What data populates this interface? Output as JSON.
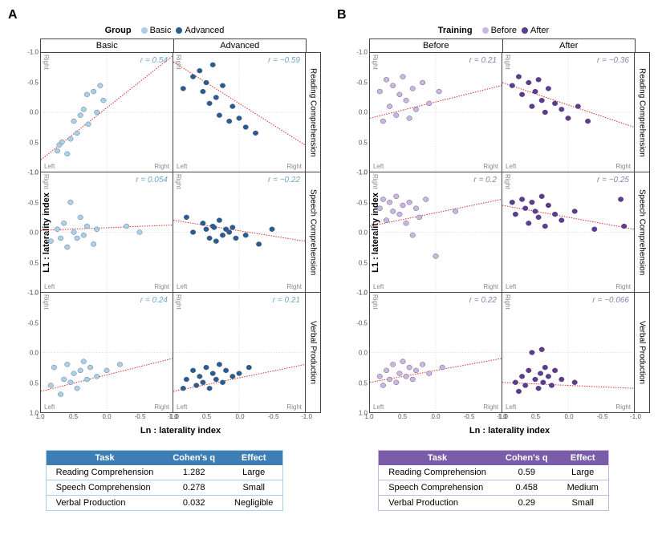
{
  "panels": [
    {
      "id": "A",
      "legend_title": "Group",
      "legend_items": [
        {
          "label": "Basic",
          "color": "#a8d0e6"
        },
        {
          "label": "Advanced",
          "color": "#2a5d8f"
        }
      ],
      "columns": [
        "Basic",
        "Advanced"
      ],
      "rows": [
        "Reading Comprehension",
        "Speech Comprehension",
        "Verbal Production"
      ],
      "point_colors": [
        "#a8d0e6",
        "#2a5d8f"
      ],
      "point_stroke": "#555570",
      "r_color": "#6fa8c7",
      "trend_color": "#e03030",
      "cells": [
        [
          {
            "r": "r = 0.54",
            "line": {
              "x1": 1.0,
              "y1": 0.8,
              "x2": -1.0,
              "y2": -0.95
            },
            "points": [
              [
                0.75,
                0.65
              ],
              [
                0.72,
                0.55
              ],
              [
                0.68,
                0.5
              ],
              [
                0.6,
                0.7
              ],
              [
                0.55,
                0.45
              ],
              [
                0.5,
                0.15
              ],
              [
                0.45,
                0.35
              ],
              [
                0.4,
                0.05
              ],
              [
                0.35,
                -0.05
              ],
              [
                0.3,
                -0.3
              ],
              [
                0.28,
                0.2
              ],
              [
                0.2,
                -0.35
              ],
              [
                0.15,
                0.0
              ],
              [
                0.1,
                -0.45
              ],
              [
                0.05,
                -0.2
              ]
            ]
          },
          {
            "r": "r = −0.59",
            "line": {
              "x1": 1.0,
              "y1": -0.85,
              "x2": -1.0,
              "y2": 0.55
            },
            "points": [
              [
                0.85,
                -0.4
              ],
              [
                0.7,
                -0.6
              ],
              [
                0.6,
                -0.7
              ],
              [
                0.55,
                -0.35
              ],
              [
                0.5,
                -0.5
              ],
              [
                0.45,
                -0.15
              ],
              [
                0.4,
                -0.8
              ],
              [
                0.35,
                -0.25
              ],
              [
                0.3,
                0.05
              ],
              [
                0.25,
                -0.45
              ],
              [
                0.15,
                0.15
              ],
              [
                0.1,
                -0.1
              ],
              [
                0.0,
                0.1
              ],
              [
                -0.1,
                0.25
              ],
              [
                -0.25,
                0.35
              ]
            ]
          }
        ],
        [
          {
            "r": "r = 0.054",
            "line": {
              "x1": 1.0,
              "y1": -0.03,
              "x2": -1.0,
              "y2": -0.12
            },
            "points": [
              [
                0.85,
                0.15
              ],
              [
                0.75,
                -0.05
              ],
              [
                0.7,
                0.1
              ],
              [
                0.65,
                -0.15
              ],
              [
                0.6,
                0.25
              ],
              [
                0.55,
                -0.5
              ],
              [
                0.5,
                0.0
              ],
              [
                0.45,
                0.1
              ],
              [
                0.4,
                -0.25
              ],
              [
                0.35,
                0.05
              ],
              [
                0.3,
                -0.1
              ],
              [
                0.2,
                0.2
              ],
              [
                0.15,
                -0.05
              ],
              [
                -0.3,
                -0.1
              ],
              [
                -0.5,
                0.0
              ]
            ]
          },
          {
            "r": "r = −0.22",
            "line": {
              "x1": 1.0,
              "y1": -0.2,
              "x2": -1.0,
              "y2": 0.15
            },
            "points": [
              [
                0.8,
                -0.25
              ],
              [
                0.7,
                0.0
              ],
              [
                0.55,
                -0.15
              ],
              [
                0.5,
                -0.05
              ],
              [
                0.45,
                0.1
              ],
              [
                0.4,
                -0.1
              ],
              [
                0.38,
                -0.08
              ],
              [
                0.35,
                0.15
              ],
              [
                0.3,
                -0.2
              ],
              [
                0.25,
                0.05
              ],
              [
                0.2,
                -0.05
              ],
              [
                0.15,
                0.0
              ],
              [
                0.1,
                -0.08
              ],
              [
                0.05,
                0.1
              ],
              [
                -0.1,
                0.05
              ],
              [
                -0.3,
                0.2
              ],
              [
                -0.5,
                -0.05
              ]
            ]
          }
        ],
        [
          {
            "r": "r = 0.24",
            "line": {
              "x1": 1.0,
              "y1": 0.65,
              "x2": -1.0,
              "y2": 0.1
            },
            "points": [
              [
                0.85,
                0.55
              ],
              [
                0.8,
                0.25
              ],
              [
                0.7,
                0.7
              ],
              [
                0.65,
                0.45
              ],
              [
                0.6,
                0.2
              ],
              [
                0.55,
                0.5
              ],
              [
                0.5,
                0.35
              ],
              [
                0.45,
                0.6
              ],
              [
                0.4,
                0.3
              ],
              [
                0.35,
                0.15
              ],
              [
                0.3,
                0.45
              ],
              [
                0.25,
                0.25
              ],
              [
                0.15,
                0.4
              ],
              [
                0.0,
                0.3
              ],
              [
                -0.2,
                0.2
              ]
            ]
          },
          {
            "r": "r = 0.21",
            "line": {
              "x1": 1.0,
              "y1": 0.65,
              "x2": -1.0,
              "y2": 0.2
            },
            "points": [
              [
                0.85,
                0.6
              ],
              [
                0.8,
                0.45
              ],
              [
                0.7,
                0.3
              ],
              [
                0.65,
                0.55
              ],
              [
                0.6,
                0.4
              ],
              [
                0.55,
                0.5
              ],
              [
                0.5,
                0.25
              ],
              [
                0.45,
                0.6
              ],
              [
                0.4,
                0.35
              ],
              [
                0.35,
                0.45
              ],
              [
                0.3,
                0.2
              ],
              [
                0.25,
                0.5
              ],
              [
                0.2,
                0.3
              ],
              [
                0.1,
                0.4
              ],
              [
                0.0,
                0.35
              ],
              [
                -0.15,
                0.25
              ]
            ]
          }
        ]
      ],
      "table": {
        "header_bg": "#3d7fb5",
        "border": "#a8d0e6",
        "cols": [
          "Task",
          "Cohen's q",
          "Effect"
        ],
        "rows": [
          [
            "Reading Comprehension",
            "1.282",
            "Large"
          ],
          [
            "Speech Comprehension",
            "0.278",
            "Small"
          ],
          [
            "Verbal Production",
            "0.032",
            "Negligible"
          ]
        ]
      }
    },
    {
      "id": "B",
      "legend_title": "Training",
      "legend_items": [
        {
          "label": "Before",
          "color": "#c8b8e0"
        },
        {
          "label": "After",
          "color": "#5a3d8f"
        }
      ],
      "columns": [
        "Before",
        "After"
      ],
      "rows": [
        "Reading Comprehension",
        "Speech Comprehension",
        "Verbal Production"
      ],
      "point_colors": [
        "#c8b8e0",
        "#5a3d8f"
      ],
      "point_stroke": "#4a3560",
      "r_color": "#9080b0",
      "trend_color": "#e03030",
      "cells": [
        [
          {
            "r": "r = 0.21",
            "line": {
              "x1": 1.0,
              "y1": 0.1,
              "x2": -1.0,
              "y2": -0.45
            },
            "points": [
              [
                0.85,
                -0.35
              ],
              [
                0.8,
                0.15
              ],
              [
                0.75,
                -0.55
              ],
              [
                0.7,
                -0.1
              ],
              [
                0.65,
                -0.45
              ],
              [
                0.6,
                0.05
              ],
              [
                0.55,
                -0.3
              ],
              [
                0.5,
                -0.6
              ],
              [
                0.45,
                -0.2
              ],
              [
                0.4,
                0.1
              ],
              [
                0.35,
                -0.4
              ],
              [
                0.3,
                -0.05
              ],
              [
                0.2,
                -0.5
              ],
              [
                0.1,
                -0.15
              ],
              [
                -0.05,
                -0.35
              ]
            ]
          },
          {
            "r": "r = −0.36",
            "line": {
              "x1": 1.0,
              "y1": -0.5,
              "x2": -1.0,
              "y2": 0.25
            },
            "points": [
              [
                0.85,
                -0.45
              ],
              [
                0.75,
                -0.6
              ],
              [
                0.7,
                -0.3
              ],
              [
                0.6,
                -0.5
              ],
              [
                0.55,
                -0.1
              ],
              [
                0.5,
                -0.35
              ],
              [
                0.45,
                -0.55
              ],
              [
                0.4,
                -0.2
              ],
              [
                0.35,
                0.0
              ],
              [
                0.3,
                -0.4
              ],
              [
                0.2,
                -0.15
              ],
              [
                0.1,
                -0.05
              ],
              [
                0.0,
                0.1
              ],
              [
                -0.15,
                -0.1
              ],
              [
                -0.3,
                0.15
              ]
            ]
          }
        ],
        [
          {
            "r": "r = 0.2",
            "line": {
              "x1": 1.0,
              "y1": -0.1,
              "x2": -1.0,
              "y2": -0.55
            },
            "points": [
              [
                0.85,
                -0.4
              ],
              [
                0.8,
                -0.55
              ],
              [
                0.75,
                -0.2
              ],
              [
                0.7,
                -0.5
              ],
              [
                0.65,
                -0.35
              ],
              [
                0.6,
                -0.6
              ],
              [
                0.55,
                -0.3
              ],
              [
                0.5,
                -0.45
              ],
              [
                0.45,
                -0.15
              ],
              [
                0.4,
                -0.5
              ],
              [
                0.35,
                0.05
              ],
              [
                0.3,
                -0.4
              ],
              [
                0.25,
                -0.25
              ],
              [
                0.15,
                -0.55
              ],
              [
                0.0,
                0.4
              ],
              [
                -0.3,
                -0.35
              ]
            ]
          },
          {
            "r": "r = −0.25",
            "line": {
              "x1": 1.0,
              "y1": -0.45,
              "x2": -1.0,
              "y2": -0.05
            },
            "points": [
              [
                0.85,
                -0.5
              ],
              [
                0.8,
                -0.3
              ],
              [
                0.7,
                -0.55
              ],
              [
                0.65,
                -0.4
              ],
              [
                0.6,
                -0.15
              ],
              [
                0.55,
                -0.5
              ],
              [
                0.5,
                -0.35
              ],
              [
                0.45,
                -0.25
              ],
              [
                0.4,
                -0.6
              ],
              [
                0.35,
                -0.1
              ],
              [
                0.3,
                -0.45
              ],
              [
                0.2,
                -0.3
              ],
              [
                0.1,
                -0.2
              ],
              [
                -0.1,
                -0.35
              ],
              [
                -0.4,
                -0.05
              ],
              [
                -0.8,
                -0.55
              ],
              [
                -0.85,
                -0.1
              ]
            ]
          }
        ],
        [
          {
            "r": "r = 0.22",
            "line": {
              "x1": 1.0,
              "y1": 0.5,
              "x2": -1.0,
              "y2": 0.1
            },
            "points": [
              [
                0.85,
                0.4
              ],
              [
                0.8,
                0.55
              ],
              [
                0.75,
                0.3
              ],
              [
                0.7,
                0.45
              ],
              [
                0.65,
                0.2
              ],
              [
                0.6,
                0.5
              ],
              [
                0.55,
                0.35
              ],
              [
                0.5,
                0.15
              ],
              [
                0.45,
                0.4
              ],
              [
                0.4,
                0.25
              ],
              [
                0.35,
                0.45
              ],
              [
                0.3,
                0.3
              ],
              [
                0.2,
                0.2
              ],
              [
                0.1,
                0.35
              ],
              [
                -0.1,
                0.25
              ]
            ]
          },
          {
            "r": "r = −0.066",
            "line": {
              "x1": 1.0,
              "y1": 0.5,
              "x2": -1.0,
              "y2": 0.6
            },
            "points": [
              [
                0.8,
                0.5
              ],
              [
                0.75,
                0.65
              ],
              [
                0.7,
                0.4
              ],
              [
                0.65,
                0.55
              ],
              [
                0.6,
                0.3
              ],
              [
                0.55,
                0.0
              ],
              [
                0.5,
                0.45
              ],
              [
                0.45,
                0.6
              ],
              [
                0.42,
                0.35
              ],
              [
                0.4,
                -0.05
              ],
              [
                0.38,
                0.5
              ],
              [
                0.35,
                0.25
              ],
              [
                0.3,
                0.4
              ],
              [
                0.25,
                0.55
              ],
              [
                0.2,
                0.3
              ],
              [
                0.1,
                0.45
              ],
              [
                -0.1,
                0.5
              ]
            ]
          }
        ]
      ],
      "table": {
        "header_bg": "#7a5ca8",
        "border": "#c8b8e0",
        "cols": [
          "Task",
          "Cohen's q",
          "Effect"
        ],
        "rows": [
          [
            "Reading Comprehension",
            "0.59",
            "Large"
          ],
          [
            "Speech Comprehension",
            "0.458",
            "Medium"
          ],
          [
            "Verbal Production",
            "0.29",
            "Small"
          ]
        ]
      }
    }
  ],
  "axes": {
    "x_label": "Ln : laterality index",
    "y_label": "L1 : laterality index",
    "ticks": [
      1.0,
      0.5,
      0.0,
      -0.5,
      -1.0
    ],
    "ytick_labels": [
      "-1.0",
      "-0.5",
      "0.0",
      "0.5",
      "1.0"
    ],
    "xtick_labels": [
      "1.0",
      "0.5",
      "0.0",
      "-0.5",
      "-1.0"
    ],
    "corner_labels": {
      "tl": "Right",
      "bl": "Left",
      "br": "Right"
    },
    "grid_color": "#dddddd"
  }
}
